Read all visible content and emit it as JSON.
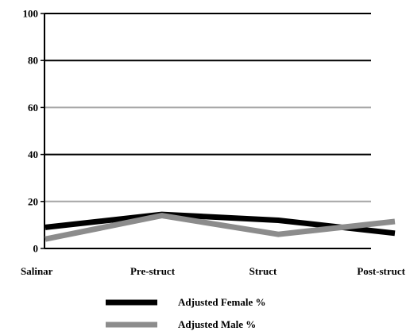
{
  "chart_data": {
    "type": "line",
    "categories": [
      "Salinar",
      "Pre-struct",
      "Struct",
      "Post-struct"
    ],
    "series": [
      {
        "name": "Adjusted Female %",
        "values": [
          9,
          14.5,
          12,
          6.5
        ],
        "color": "#000000"
      },
      {
        "name": "Adjusted Male %",
        "values": [
          4,
          14,
          6,
          11.5
        ],
        "color": "#8c8c8c"
      }
    ],
    "ylim": [
      0,
      100
    ],
    "yticks": [
      0,
      20,
      40,
      60,
      80,
      100
    ],
    "grid": true,
    "grid_colors": {
      "20": "#a6a6a6",
      "60": "#a6a6a6",
      "default": "#000000"
    },
    "legend_position": "bottom"
  }
}
